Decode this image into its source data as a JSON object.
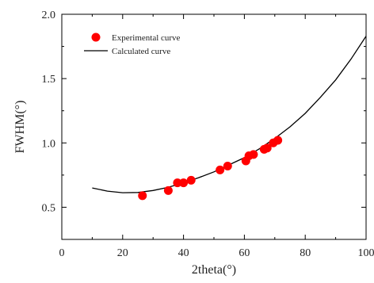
{
  "chart_data": {
    "type": "scatter",
    "xlabel": "2theta(°)",
    "ylabel": "FWHM(°)",
    "xlim": [
      0,
      100
    ],
    "ylim": [
      0.25,
      2.0
    ],
    "x_ticks": [
      "0",
      "20",
      "40",
      "60",
      "80",
      "100"
    ],
    "y_ticks": [
      "0.5",
      "1.0",
      "1.5",
      "2.0"
    ],
    "x_tick_values": [
      0,
      20,
      40,
      60,
      80,
      100
    ],
    "y_tick_values": [
      0.5,
      1.0,
      1.5,
      2.0
    ],
    "grid": false,
    "legend_position": "top-left",
    "series": [
      {
        "name": "Experimental curve",
        "kind": "scatter",
        "color": "#ff0000",
        "points": [
          [
            26.5,
            0.59
          ],
          [
            35.0,
            0.63
          ],
          [
            38.0,
            0.69
          ],
          [
            40.0,
            0.69
          ],
          [
            42.5,
            0.71
          ],
          [
            52.0,
            0.79
          ],
          [
            54.5,
            0.82
          ],
          [
            60.5,
            0.86
          ],
          [
            61.5,
            0.9
          ],
          [
            63.0,
            0.91
          ],
          [
            66.5,
            0.95
          ],
          [
            67.5,
            0.96
          ],
          [
            69.5,
            1.0
          ],
          [
            71.0,
            1.02
          ]
        ]
      },
      {
        "name": "Calculated curve",
        "kind": "line",
        "color": "#000000",
        "points": [
          [
            10,
            0.65
          ],
          [
            15,
            0.625
          ],
          [
            20,
            0.613
          ],
          [
            25,
            0.615
          ],
          [
            30,
            0.63
          ],
          [
            35,
            0.655
          ],
          [
            40,
            0.69
          ],
          [
            45,
            0.73
          ],
          [
            50,
            0.775
          ],
          [
            55,
            0.83
          ],
          [
            60,
            0.885
          ],
          [
            65,
            0.955
          ],
          [
            70,
            1.035
          ],
          [
            75,
            1.125
          ],
          [
            80,
            1.23
          ],
          [
            85,
            1.355
          ],
          [
            90,
            1.49
          ],
          [
            95,
            1.65
          ],
          [
            100,
            1.83
          ]
        ]
      }
    ]
  }
}
